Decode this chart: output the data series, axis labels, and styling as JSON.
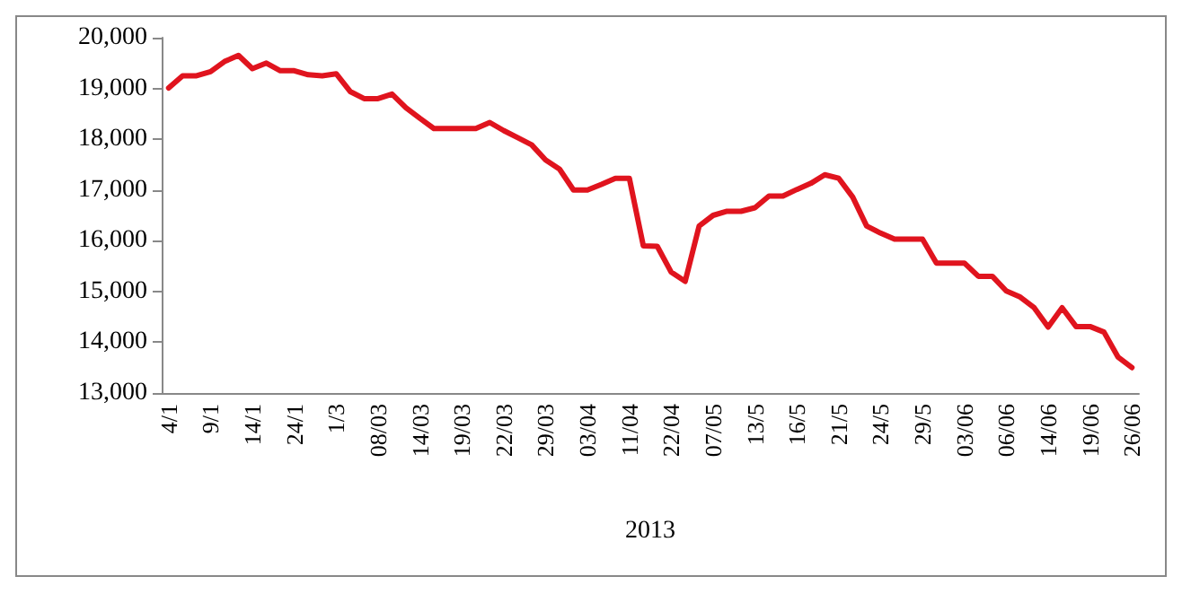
{
  "chart_data": {
    "type": "line",
    "xlabel": "2013",
    "categories": [
      "4/1",
      null,
      null,
      "9/1",
      null,
      null,
      "14/1",
      null,
      null,
      "24/1",
      null,
      null,
      "1/3",
      null,
      null,
      "08/03",
      null,
      null,
      "14/03",
      null,
      null,
      "19/03",
      null,
      null,
      "22/03",
      null,
      null,
      "29/03",
      null,
      null,
      "03/04",
      null,
      null,
      "11/04",
      null,
      null,
      "22/04",
      null,
      null,
      "07/05",
      null,
      null,
      "13/5",
      null,
      null,
      "16/5",
      null,
      null,
      "21/5",
      null,
      null,
      "24/5",
      null,
      null,
      "29/5",
      null,
      null,
      "03/06",
      null,
      null,
      "06/06",
      null,
      null,
      "14/06",
      null,
      null,
      "19/06",
      null,
      null,
      "26/06"
    ],
    "series": [
      {
        "color": "#e0141e",
        "values": [
          19010,
          19250,
          19250,
          19330,
          19530,
          19650,
          19390,
          19500,
          19350,
          19350,
          19270,
          19250,
          19290,
          18940,
          18800,
          18800,
          18890,
          18620,
          18410,
          18210,
          18210,
          18210,
          18210,
          18330,
          18170,
          18030,
          17890,
          17590,
          17410,
          17000,
          17000,
          17110,
          17230,
          17230,
          15900,
          15890,
          15380,
          15200,
          16290,
          16500,
          16580,
          16580,
          16650,
          16880,
          16880,
          17010,
          17130,
          17300,
          17230,
          16860,
          16290,
          16150,
          16030,
          16030,
          16030,
          15560,
          15560,
          15560,
          15300,
          15300,
          15010,
          14890,
          14680,
          14300,
          14680,
          14310,
          14310,
          14200,
          13710,
          13500
        ]
      }
    ],
    "ylim": [
      13000,
      20000
    ],
    "yticks": [
      {
        "value": 13000,
        "label": "13,000"
      },
      {
        "value": 14000,
        "label": "14,000"
      },
      {
        "value": 15000,
        "label": "15,000"
      },
      {
        "value": 16000,
        "label": "16,000"
      },
      {
        "value": 17000,
        "label": "17,000"
      },
      {
        "value": 18000,
        "label": "18,000"
      },
      {
        "value": 19000,
        "label": "19,000"
      },
      {
        "value": 20000,
        "label": "20,000"
      }
    ],
    "marker": "none",
    "line_style": "solid"
  }
}
